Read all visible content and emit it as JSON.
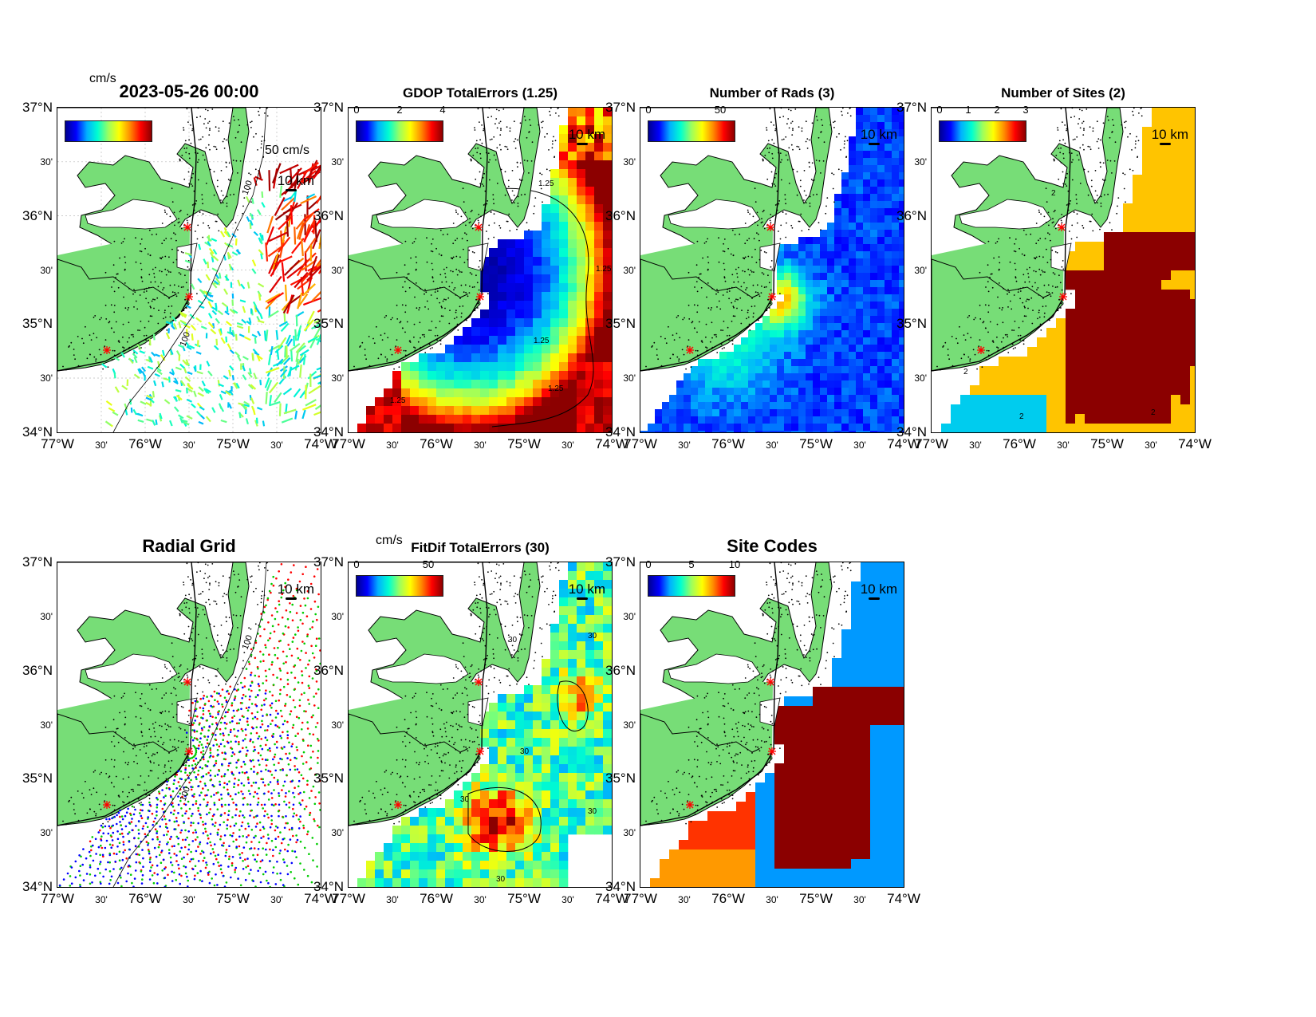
{
  "figure": {
    "lat_ticks": [
      "37°N",
      "30'",
      "36°N",
      "30'",
      "35°N",
      "30'",
      "34°N"
    ],
    "lon_ticks": [
      "77°W",
      "30'",
      "76°W",
      "30'",
      "75°W",
      "30'",
      "74°W"
    ],
    "scale_label": "10 km",
    "colormap": [
      "#00008f",
      "#0000ff",
      "#00b0ff",
      "#00ffd0",
      "#9dff5e",
      "#ffff00",
      "#ff8c00",
      "#ff0000",
      "#8b0000"
    ],
    "land_color": "#77dd77",
    "site_marker_color": "#ff0000"
  },
  "panels": [
    {
      "id": "currents",
      "title": "2023-05-26 00:00",
      "unit": "cm/s",
      "arrow_label": "50 cm/s",
      "colorbar_ticks": [],
      "contour_labels": [
        "100",
        "100"
      ]
    },
    {
      "id": "gdop",
      "title": "GDOP TotalErrors (1.25)",
      "colorbar_ticks": [
        "0",
        "2",
        "4"
      ],
      "contour_labels": [
        "1.25",
        "1.25",
        "1.25",
        "1.25",
        "1.25"
      ]
    },
    {
      "id": "rads",
      "title": "Number of Rads (3)",
      "colorbar_ticks": [
        "0",
        "50"
      ],
      "contour_labels": []
    },
    {
      "id": "sites",
      "title": "Number of Sites (2)",
      "colorbar_ticks": [
        "0",
        "1",
        "2",
        "3"
      ],
      "contour_labels": [
        "2",
        "2",
        "2",
        "2"
      ]
    },
    {
      "id": "radial-grid",
      "title": "Radial Grid",
      "colorbar_ticks": [],
      "contour_labels": [
        "100",
        "100"
      ]
    },
    {
      "id": "fitdif",
      "title": "FitDif TotalErrors (30)",
      "unit": "cm/s",
      "colorbar_ticks": [
        "0",
        "50"
      ],
      "contour_labels": [
        "30",
        "30",
        "30",
        "30",
        "30",
        "30"
      ]
    },
    {
      "id": "site-codes",
      "title": "Site Codes",
      "colorbar_ticks": [
        "0",
        "5",
        "10"
      ],
      "contour_labels": []
    }
  ]
}
